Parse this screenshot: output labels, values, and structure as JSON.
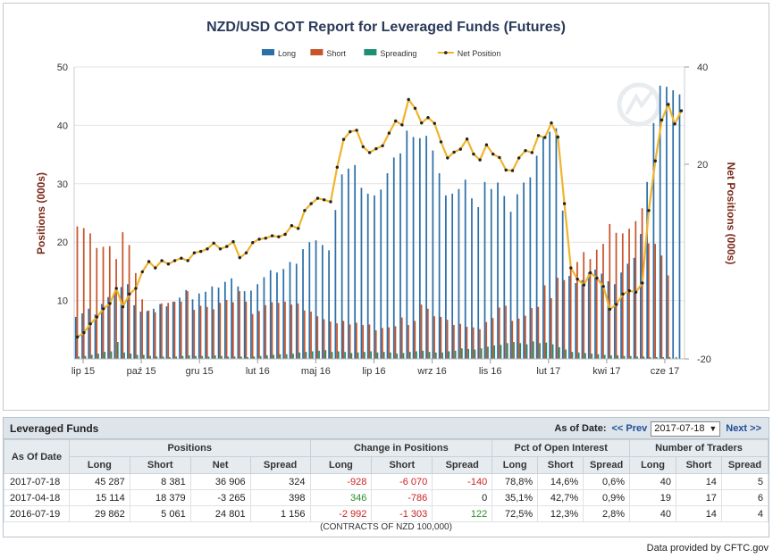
{
  "chart_data": {
    "type": "bar",
    "title": "NZD/USD COT Report for Leveraged Funds (Futures)",
    "ylabel": "Positions (000s)",
    "y2label": "Net Positions (000s)",
    "ylim": [
      0,
      50
    ],
    "y2lim": [
      -20,
      40
    ],
    "yticks": [
      10,
      20,
      30,
      40,
      50
    ],
    "y2ticks": [
      -20,
      20,
      40
    ],
    "xticks": [
      "lip 15",
      "paź 15",
      "gru 15",
      "lut 16",
      "maj 16",
      "lip 16",
      "wrz 16",
      "lis 16",
      "lut 17",
      "kwi 17",
      "cze 17"
    ],
    "grid": true,
    "legend_position": "top-center",
    "series": [
      {
        "name": "Long",
        "color": "#2b6fa8",
        "values": [
          7.2,
          7.8,
          8.6,
          7.6,
          9.4,
          10.6,
          11.6,
          12.3,
          12.8,
          9.2,
          8.1,
          8.2,
          8.6,
          9.4,
          9.0,
          9.8,
          10.5,
          11.8,
          10.2,
          11.2,
          11.5,
          12.4,
          12.2,
          13.2,
          13.8,
          12.4,
          11.6,
          11.7,
          12.8,
          14.0,
          15.2,
          14.8,
          15.4,
          16.6,
          16.3,
          18.8,
          20.0,
          20.3,
          19.5,
          18.6,
          25.5,
          31.6,
          32.6,
          33.2,
          29.3,
          28.3,
          28.0,
          29.0,
          31.8,
          34.5,
          35.2,
          39.1,
          38.0,
          37.8,
          38.2,
          35.7,
          31.8,
          28.0,
          28.3,
          29.1,
          30.7,
          27.5,
          26.0,
          30.3,
          29.1,
          30.2,
          27.9,
          25.2,
          28.2,
          30.2,
          31.1,
          34.8,
          38.1,
          38.9,
          39.5,
          25.4,
          14.2,
          13.0,
          13.5,
          14.8,
          15.3,
          14.6,
          13.3,
          12.8,
          14.8,
          16.3,
          17.3,
          21.4,
          30.3,
          40.4,
          46.8,
          46.6,
          46.0,
          45.3
        ]
      },
      {
        "name": "Short",
        "color": "#c8542a",
        "values": [
          22.7,
          22.4,
          21.5,
          19.0,
          19.2,
          19.3,
          17.1,
          21.7,
          19.5,
          14.7,
          10.2,
          8.3,
          8.0,
          9.5,
          9.6,
          9.8,
          9.8,
          11.6,
          8.4,
          9.1,
          8.9,
          8.5,
          9.6,
          10.1,
          9.7,
          11.6,
          9.8,
          7.7,
          8.2,
          9.2,
          9.7,
          9.6,
          9.8,
          9.3,
          9.5,
          8.3,
          8.1,
          7.3,
          6.8,
          6.4,
          6.1,
          6.5,
          5.9,
          6.2,
          5.8,
          5.9,
          4.9,
          5.3,
          5.4,
          5.6,
          7.1,
          5.8,
          6.5,
          9.3,
          8.6,
          7.3,
          7.2,
          6.7,
          5.8,
          6.0,
          5.5,
          5.4,
          5.1,
          6.3,
          7.0,
          8.8,
          9.1,
          6.5,
          6.9,
          7.4,
          8.7,
          8.9,
          12.6,
          10.4,
          13.9,
          13.5,
          15.5,
          16.6,
          18.3,
          17.1,
          18.7,
          19.7,
          23.1,
          21.6,
          21.5,
          22.3,
          23.6,
          25.8,
          19.8,
          19.7,
          17.7,
          14.3
        ]
      },
      {
        "name": "Spreading",
        "color": "#1e8e74",
        "values": [
          0.4,
          0.5,
          0.7,
          0.9,
          1.2,
          1.3,
          2.9,
          1.1,
          0.9,
          0.7,
          0.7,
          0.5,
          0.4,
          0.4,
          0.3,
          0.4,
          0.5,
          0.6,
          0.5,
          0.5,
          0.4,
          0.6,
          0.5,
          0.4,
          0.4,
          0.4,
          0.3,
          0.4,
          0.5,
          0.6,
          0.7,
          0.8,
          0.8,
          0.9,
          1.1,
          1.2,
          1.3,
          1.4,
          1.5,
          1.2,
          1.3,
          1.2,
          1.0,
          1.1,
          1.2,
          1.3,
          1.1,
          1.2,
          1.1,
          0.9,
          1.0,
          1.2,
          1.3,
          1.4,
          1.2,
          1.1,
          1.1,
          1.3,
          1.4,
          1.8,
          1.7,
          1.6,
          1.8,
          2.1,
          2.3,
          2.4,
          2.7,
          2.9,
          2.7,
          2.5,
          3.0,
          2.7,
          2.8,
          2.5,
          2.0,
          1.6,
          1.2,
          1.1,
          1.0,
          0.9,
          0.8,
          0.7,
          0.6,
          0.6,
          0.5,
          0.5,
          0.4,
          0.4,
          0.3,
          0.3,
          0.3,
          0.3,
          0.3
        ]
      },
      {
        "name": "Net Position",
        "color": "#f0b42a",
        "axis": "right",
        "values": [
          -15.5,
          -14.6,
          -12.8,
          -11.4,
          -9.7,
          -8.6,
          -5.5,
          -9.3,
          -6.7,
          -5.5,
          -2.1,
          0.0,
          -1.3,
          0.2,
          -0.5,
          0.2,
          0.7,
          0.2,
          1.8,
          2.1,
          2.6,
          3.8,
          2.6,
          3.1,
          4.1,
          0.8,
          1.8,
          3.9,
          4.6,
          4.8,
          5.3,
          5.1,
          5.6,
          7.4,
          6.8,
          10.5,
          11.9,
          13.0,
          12.7,
          12.3,
          19.4,
          25.1,
          26.7,
          27.0,
          23.6,
          22.4,
          23.2,
          23.8,
          26.4,
          28.9,
          28.1,
          33.3,
          31.5,
          28.5,
          29.6,
          28.4,
          24.6,
          21.3,
          22.5,
          23.1,
          25.2,
          22.1,
          20.9,
          24.0,
          22.1,
          21.4,
          18.8,
          18.7,
          21.3,
          22.8,
          22.4,
          25.9,
          25.5,
          28.5,
          25.6,
          11.9,
          -1.3,
          -3.6,
          -4.8,
          -2.3,
          -3.4,
          -5.1,
          -9.8,
          -8.8,
          -6.7,
          -6.0,
          -6.3,
          -4.4,
          10.5,
          20.7,
          29.1,
          32.3,
          28.3,
          31.0
        ]
      }
    ]
  },
  "table": {
    "title": "Leveraged Funds",
    "as_of_label": "As of Date:",
    "prev_label": "<< Prev",
    "next_label": "Next >>",
    "selected_date": "2017-07-18",
    "headers": {
      "as_of_date": "As Of Date",
      "groups": [
        "Positions",
        "Change in Positions",
        "Pct of Open Interest",
        "Number of Traders"
      ],
      "positions": [
        "Long",
        "Short",
        "Net",
        "Spread"
      ],
      "change": [
        "Long",
        "Short",
        "Spread"
      ],
      "pct": [
        "Long",
        "Short",
        "Spread"
      ],
      "traders": [
        "Long",
        "Short",
        "Spread"
      ]
    },
    "rows": [
      {
        "date": "2017-07-18",
        "pos_long": "45 287",
        "pos_short": "8 381",
        "pos_net": "36 906",
        "pos_spread": "324",
        "chg_long": "-928",
        "chg_short": "-6 070",
        "chg_spread": "-140",
        "pct_long": "78,8%",
        "pct_short": "14,6%",
        "pct_spread": "0,6%",
        "tr_long": "40",
        "tr_short": "14",
        "tr_spread": "5"
      },
      {
        "date": "2017-04-18",
        "pos_long": "15 114",
        "pos_short": "18 379",
        "pos_net": "-3 265",
        "pos_spread": "398",
        "chg_long": "346",
        "chg_short": "-786",
        "chg_spread": "0",
        "pct_long": "35,1%",
        "pct_short": "42,7%",
        "pct_spread": "0,9%",
        "tr_long": "19",
        "tr_short": "17",
        "tr_spread": "6"
      },
      {
        "date": "2016-07-19",
        "pos_long": "29 862",
        "pos_short": "5 061",
        "pos_net": "24 801",
        "pos_spread": "1 156",
        "chg_long": "-2 992",
        "chg_short": "-1 303",
        "chg_spread": "122",
        "pct_long": "72,5%",
        "pct_short": "12,3%",
        "pct_spread": "2,8%",
        "tr_long": "40",
        "tr_short": "14",
        "tr_spread": "4"
      }
    ],
    "footnote": "(CONTRACTS OF NZD 100,000)"
  },
  "credit": "Data provided by CFTC.gov",
  "colors": {
    "title": "#2a3a5a",
    "axis_title": "#7a2a1a",
    "grid": "#e4e4e4",
    "link": "#1f4e99"
  }
}
